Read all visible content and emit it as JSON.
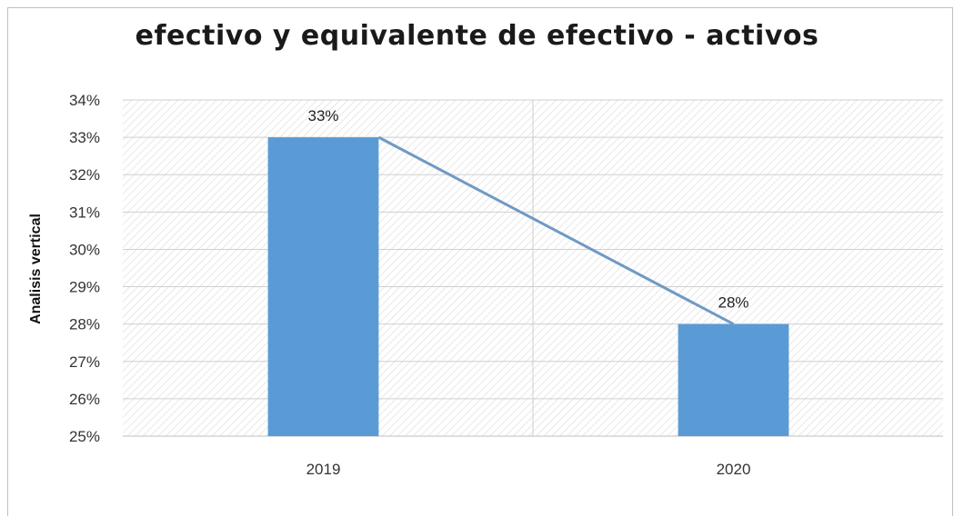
{
  "chart_data": {
    "type": "bar",
    "title": "efectivo y equivalente de efectivo - activos",
    "ylabel": "Analisis vertical",
    "xlabel": "",
    "categories": [
      "2019",
      "2020"
    ],
    "values": [
      33,
      28
    ],
    "data_labels": [
      "33%",
      "28%"
    ],
    "trend_line": true,
    "ylim": [
      25,
      34
    ],
    "yticks": [
      25,
      26,
      27,
      28,
      29,
      30,
      31,
      32,
      33,
      34
    ],
    "ytick_labels": [
      "25%",
      "26%",
      "27%",
      "28%",
      "29%",
      "30%",
      "31%",
      "32%",
      "33%",
      "34%"
    ],
    "grid": true,
    "legend": "none",
    "colors": {
      "bar": "#5b9bd5",
      "trend_line": "#6f9ac3",
      "grid": "#cfcfcf",
      "hatch": "#d9d9d9"
    }
  }
}
